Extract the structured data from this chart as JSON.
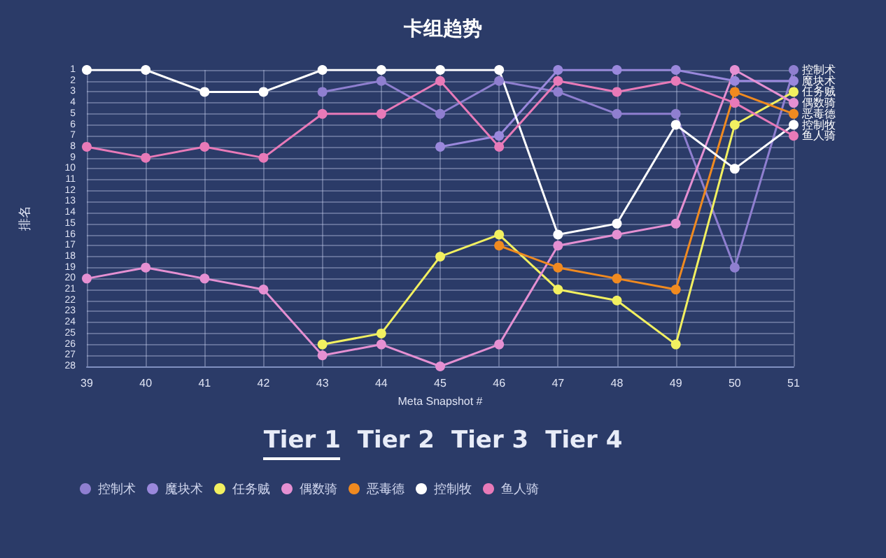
{
  "chart_data": {
    "type": "line",
    "title": "卡组趋势",
    "xlabel": "Meta Snapshot #",
    "ylabel": "排名",
    "annotations": [
      "Tier 1",
      "Tier 2",
      "Tier 3",
      "Tier 4"
    ],
    "x": [
      39,
      40,
      41,
      42,
      43,
      44,
      45,
      46,
      47,
      48,
      49,
      50,
      51
    ],
    "xlim": [
      39,
      51
    ],
    "xticks": [
      39,
      40,
      41,
      42,
      43,
      44,
      45,
      46,
      47,
      48,
      49,
      50,
      51
    ],
    "ylim": [
      28,
      1
    ],
    "yticks": [
      1,
      2,
      3,
      4,
      5,
      6,
      7,
      8,
      9,
      10,
      11,
      12,
      13,
      14,
      15,
      16,
      17,
      18,
      19,
      20,
      21,
      22,
      23,
      24,
      25,
      26,
      27,
      28
    ],
    "grid": true,
    "legend": "bottom",
    "marker": "circle",
    "line_style": "solid",
    "series": [
      {
        "name": "控制术",
        "color": "#8f7fd0",
        "values": [
          null,
          null,
          null,
          null,
          3,
          2,
          5,
          2,
          3,
          5,
          5,
          19,
          1
        ]
      },
      {
        "name": "魔块术",
        "color": "#9a88dc",
        "values": [
          null,
          null,
          null,
          null,
          null,
          null,
          8,
          7,
          1,
          1,
          1,
          2,
          2
        ]
      },
      {
        "name": "任务贼",
        "color": "#f2f060",
        "values": [
          null,
          null,
          null,
          null,
          26,
          25,
          18,
          16,
          21,
          22,
          26,
          6,
          3
        ]
      },
      {
        "name": "偶数骑",
        "color": "#e590d2",
        "values": [
          20,
          19,
          20,
          21,
          27,
          26,
          28,
          26,
          17,
          16,
          15,
          1,
          4
        ]
      },
      {
        "name": "恶毒德",
        "color": "#f08a20",
        "values": [
          null,
          null,
          null,
          null,
          null,
          null,
          null,
          17,
          19,
          20,
          21,
          3,
          5
        ]
      },
      {
        "name": "控制牧",
        "color": "#ffffff",
        "values": [
          1,
          1,
          3,
          3,
          1,
          1,
          1,
          1,
          16,
          15,
          6,
          10,
          6
        ]
      },
      {
        "name": "鱼人骑",
        "color": "#e87ab8",
        "values": [
          8,
          9,
          8,
          9,
          5,
          5,
          2,
          8,
          2,
          3,
          2,
          4,
          7
        ]
      }
    ]
  }
}
